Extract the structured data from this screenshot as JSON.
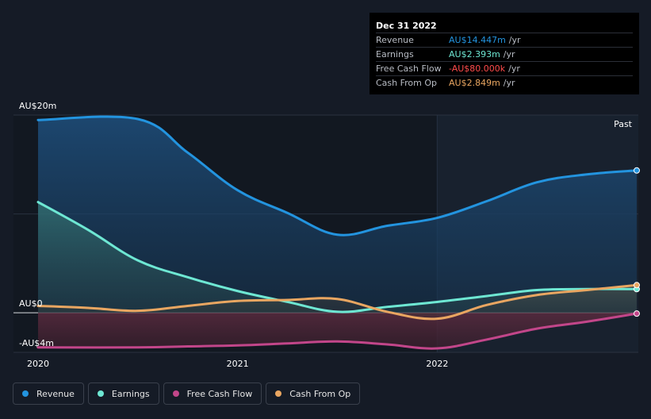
{
  "chart_data": {
    "type": "area",
    "title": "",
    "ylabel": "",
    "xlabel": "",
    "y_unit": "AU$m",
    "ylim": [
      -4,
      20
    ],
    "xlim": [
      2020.0,
      2023.0
    ],
    "grid": true,
    "legend_position": "bottom-left",
    "y_tick_labels": [
      {
        "value": 20,
        "label": "AU$20m"
      },
      {
        "value": 0,
        "label": "AU$0"
      },
      {
        "value": -4,
        "label": "-AU$4m"
      }
    ],
    "x_tick_labels": [
      {
        "value": 2020.0,
        "label": "2020"
      },
      {
        "value": 2021.0,
        "label": "2021"
      },
      {
        "value": 2022.0,
        "label": "2022"
      }
    ],
    "past_label": "Past",
    "past_start": 2022.0,
    "series": [
      {
        "name": "Revenue",
        "color": "#2394df",
        "x": [
          2020.0,
          2020.5,
          2020.75,
          2021.0,
          2021.25,
          2021.5,
          2021.75,
          2022.0,
          2022.25,
          2022.5,
          2022.75,
          2023.0
        ],
        "values": [
          19.5,
          19.6,
          16.2,
          12.4,
          10.1,
          7.9,
          8.8,
          9.6,
          11.3,
          13.2,
          14.0,
          14.4
        ]
      },
      {
        "name": "Earnings",
        "color": "#6ee7d3",
        "x": [
          2020.0,
          2020.25,
          2020.5,
          2020.75,
          2021.0,
          2021.25,
          2021.5,
          2021.75,
          2022.0,
          2022.25,
          2022.5,
          2022.75,
          2023.0
        ],
        "values": [
          11.2,
          8.4,
          5.3,
          3.6,
          2.2,
          1.1,
          0.1,
          0.6,
          1.1,
          1.7,
          2.3,
          2.4,
          2.4
        ]
      },
      {
        "name": "Free Cash Flow",
        "color": "#c2468a",
        "x": [
          2020.0,
          2020.5,
          2020.75,
          2021.0,
          2021.25,
          2021.5,
          2021.75,
          2022.0,
          2022.25,
          2022.5,
          2022.75,
          2023.0
        ],
        "values": [
          -3.5,
          -3.5,
          -3.4,
          -3.3,
          -3.1,
          -2.9,
          -3.2,
          -3.6,
          -2.7,
          -1.6,
          -0.9,
          -0.08
        ]
      },
      {
        "name": "Cash From Op",
        "color": "#e9a661",
        "x": [
          2020.0,
          2020.25,
          2020.5,
          2020.75,
          2021.0,
          2021.25,
          2021.5,
          2021.75,
          2022.0,
          2022.25,
          2022.5,
          2022.75,
          2023.0
        ],
        "values": [
          0.7,
          0.5,
          0.2,
          0.7,
          1.2,
          1.3,
          1.4,
          0.1,
          -0.6,
          0.8,
          1.8,
          2.3,
          2.8
        ]
      }
    ]
  },
  "tooltip": {
    "date": "Dec 31 2022",
    "unit": "/yr",
    "rows": [
      {
        "label": "Revenue",
        "value": "AU$14.447m",
        "color": "#2394df"
      },
      {
        "label": "Earnings",
        "value": "AU$2.393m",
        "color": "#6ee7d3"
      },
      {
        "label": "Free Cash Flow",
        "value": "-AU$80.000k",
        "color": "#ff4b4b"
      },
      {
        "label": "Cash From Op",
        "value": "AU$2.849m",
        "color": "#e9a661"
      }
    ]
  },
  "legend": [
    {
      "label": "Revenue",
      "color": "#2394df"
    },
    {
      "label": "Earnings",
      "color": "#6ee7d3"
    },
    {
      "label": "Free Cash Flow",
      "color": "#c2468a"
    },
    {
      "label": "Cash From Op",
      "color": "#e9a661"
    }
  ]
}
